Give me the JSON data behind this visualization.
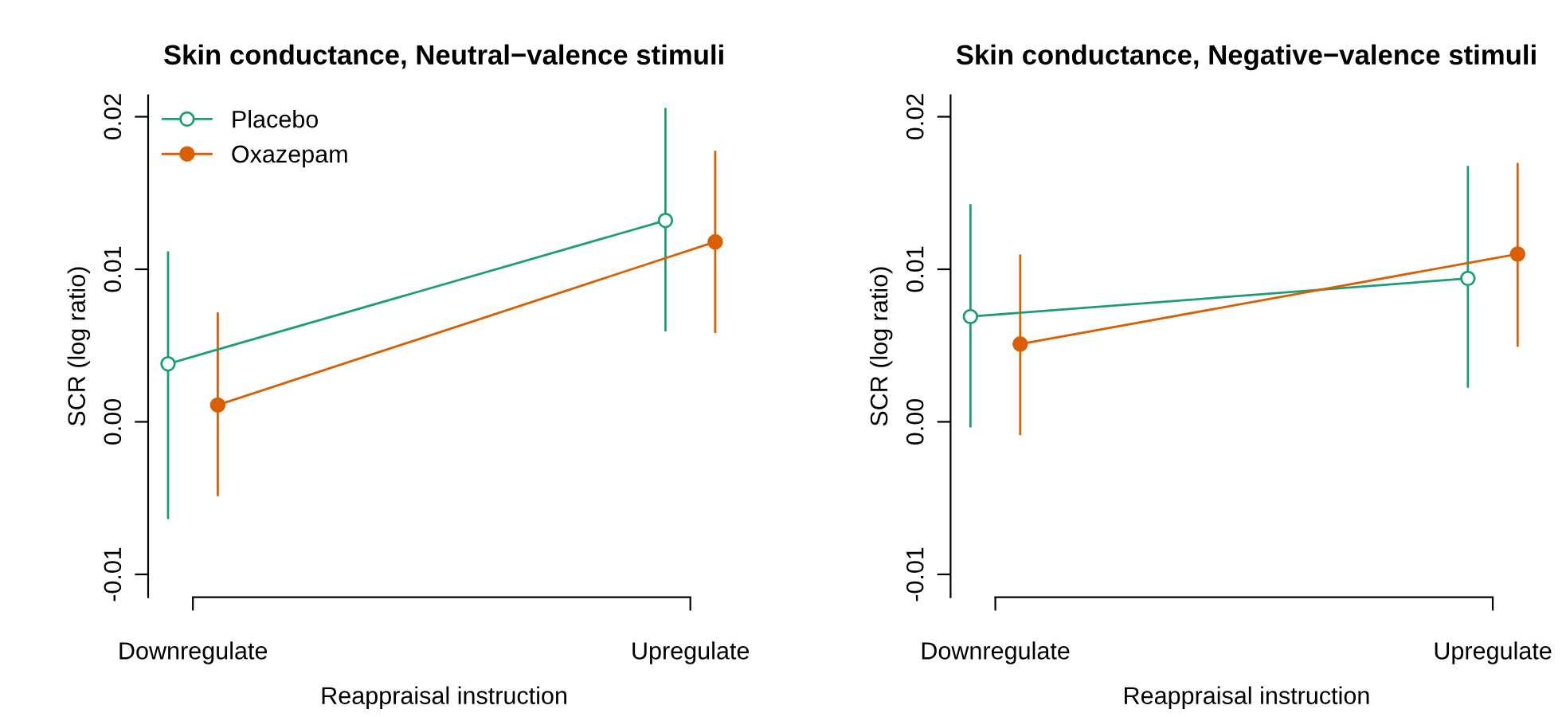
{
  "chart_data": [
    {
      "type": "line",
      "title": "Skin conductance, Neutral−valence stimuli",
      "xlabel": "Reappraisal instruction",
      "ylabel": "SCR (log ratio)",
      "categories": [
        "Downregulate",
        "Upregulate"
      ],
      "ylim": [
        -0.0115,
        0.0214
      ],
      "yticks": [
        {
          "value": -0.01,
          "label": "-0.01"
        },
        {
          "value": 0.0,
          "label": "0.00"
        },
        {
          "value": 0.01,
          "label": "0.01"
        },
        {
          "value": 0.02,
          "label": "0.02"
        }
      ],
      "grid": false,
      "legend": "top left",
      "marker": "circle",
      "line_style": "solid",
      "series": [
        {
          "name": "Placebo",
          "color": "#1b9e77",
          "values": [
            0.0038,
            0.0132
          ],
          "errors": [
            [
              -0.0063,
              0.0111
            ],
            [
              0.006,
              0.0205
            ]
          ]
        },
        {
          "name": "Oxazepam",
          "color": "#d95f02",
          "values": [
            0.0011,
            0.0118
          ],
          "errors": [
            [
              -0.0048,
              0.0071
            ],
            [
              0.0059,
              0.0177
            ]
          ]
        }
      ]
    },
    {
      "type": "line",
      "title": "Skin conductance, Negative−valence stimuli",
      "xlabel": "Reappraisal instruction",
      "ylabel": "SCR (log ratio)",
      "categories": [
        "Downregulate",
        "Upregulate"
      ],
      "ylim": [
        -0.0115,
        0.0214
      ],
      "yticks": [
        {
          "value": -0.01,
          "label": "-0.01"
        },
        {
          "value": 0.0,
          "label": "0.00"
        },
        {
          "value": 0.01,
          "label": "0.01"
        },
        {
          "value": 0.02,
          "label": "0.02"
        }
      ],
      "grid": false,
      "legend": false,
      "marker": "circle",
      "line_style": "solid",
      "series": [
        {
          "color": "#1b9e77",
          "values": [
            0.0069,
            0.0094
          ],
          "errors": [
            [
              -0.0003,
              0.0142
            ],
            [
              0.0023,
              0.0167
            ]
          ]
        },
        {
          "color": "#d95f02",
          "values": [
            0.0051,
            0.011
          ],
          "errors": [
            [
              -0.0008,
              0.0109
            ],
            [
              0.005,
              0.0169
            ]
          ]
        }
      ]
    }
  ]
}
